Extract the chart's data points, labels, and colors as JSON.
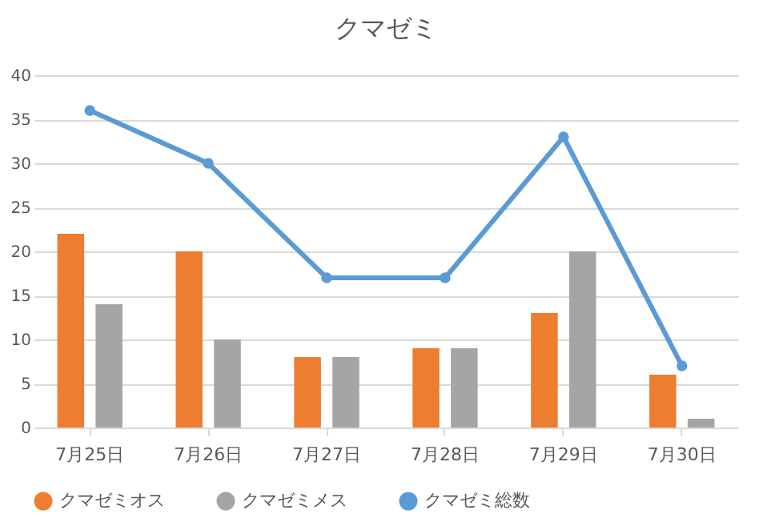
{
  "chart_data": {
    "type": "bar",
    "title": "クマゼミ",
    "categories": [
      "7月25日",
      "7月26日",
      "7月27日",
      "7月28日",
      "7月29日",
      "7月30日"
    ],
    "series": [
      {
        "name": "クマゼミオス",
        "color": "#ed7d31",
        "values": [
          22,
          20,
          8,
          9,
          13,
          6
        ]
      },
      {
        "name": "クマゼミメス",
        "color": "#a5a5a5",
        "values": [
          14,
          10,
          8,
          9,
          20,
          1
        ]
      },
      {
        "name": "クマゼミ総数",
        "type": "line",
        "color": "#5b9bd5",
        "values": [
          36,
          30,
          17,
          17,
          33,
          7
        ]
      }
    ],
    "ylim": [
      0,
      40
    ],
    "yticks": [
      0,
      5,
      10,
      15,
      20,
      25,
      30,
      35,
      40
    ],
    "grid": "y",
    "legend": "bottom",
    "marker": "circle"
  }
}
